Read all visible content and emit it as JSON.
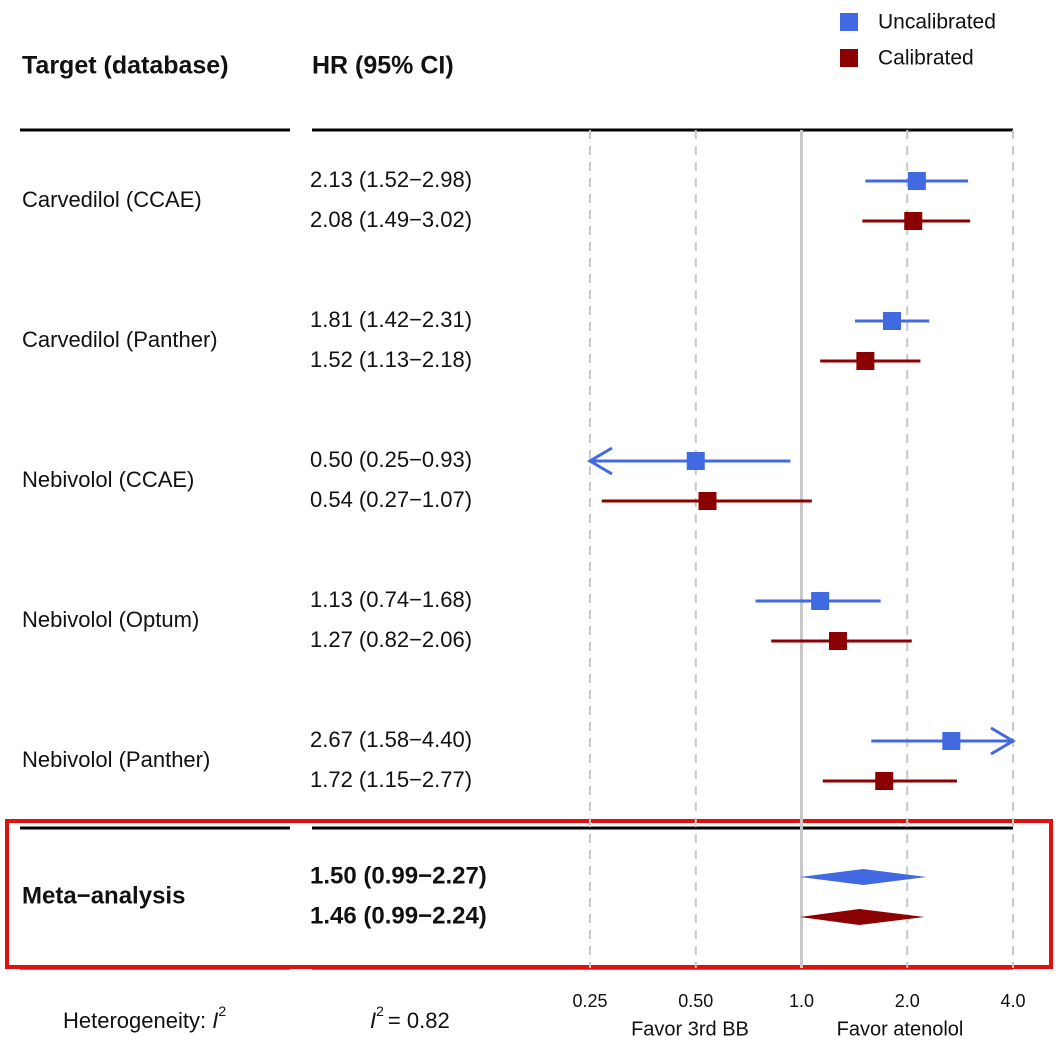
{
  "chart_data": {
    "type": "forest",
    "headers": [
      "Target (database)",
      "HR (95% CI)"
    ],
    "categories": [
      "Carvedilol (CCAE)",
      "Carvedilol (Panther)",
      "Nebivolol (CCAE)",
      "Nebivolol (Optum)",
      "Nebivolol (Panther)"
    ],
    "meta_label": "Meta−analysis",
    "series": [
      {
        "name": "Uncalibrated",
        "color": "#4169e1",
        "values": [
          2.13,
          1.81,
          0.5,
          1.13,
          2.67
        ],
        "lower": [
          1.52,
          1.42,
          0.25,
          0.74,
          1.58
        ],
        "upper": [
          2.98,
          2.31,
          0.93,
          1.68,
          4.4
        ],
        "value_labels": [
          "2.13 (1.52−2.98)",
          "1.81 (1.42−2.31)",
          "0.50 (0.25−0.93)",
          "1.13 (0.74−1.68)",
          "2.67 (1.58−4.40)"
        ],
        "meta": {
          "value": 1.5,
          "lower": 0.99,
          "upper": 2.27,
          "label": "1.50 (0.99−2.27)"
        }
      },
      {
        "name": "Calibrated",
        "color": "#8b0000",
        "values": [
          2.08,
          1.52,
          0.54,
          1.27,
          1.72
        ],
        "lower": [
          1.49,
          1.13,
          0.27,
          0.82,
          1.15
        ],
        "upper": [
          3.02,
          2.18,
          1.07,
          2.06,
          2.77
        ],
        "value_labels": [
          "2.08 (1.49−3.02)",
          "1.52 (1.13−2.18)",
          "0.54 (0.27−1.07)",
          "1.27 (0.82−2.06)",
          "1.72 (1.15−2.77)"
        ],
        "meta": {
          "value": 1.46,
          "lower": 0.99,
          "upper": 2.24,
          "label": "1.46 (0.99−2.24)"
        }
      }
    ],
    "xscale": "log",
    "xlim": [
      0.25,
      4
    ],
    "xticks": [
      0.25,
      {
        "value": 0.5,
        "label": "0.50"
      },
      {
        "value": 1,
        "label": "1.0"
      },
      {
        "value": 2,
        "label": "2.0"
      },
      {
        "value": 4,
        "label": "4.0"
      }
    ],
    "reference_line": 1,
    "grid": true,
    "legend": "top-right",
    "direction_labels": [
      "Favor 3rd BB",
      "Favor atenolol"
    ],
    "heterogeneity_label": "Heterogeneity:",
    "i2_symbol": "I",
    "i2_exponent": "2",
    "i2": {
      "value": 0.82,
      "label": "= 0.82"
    }
  }
}
